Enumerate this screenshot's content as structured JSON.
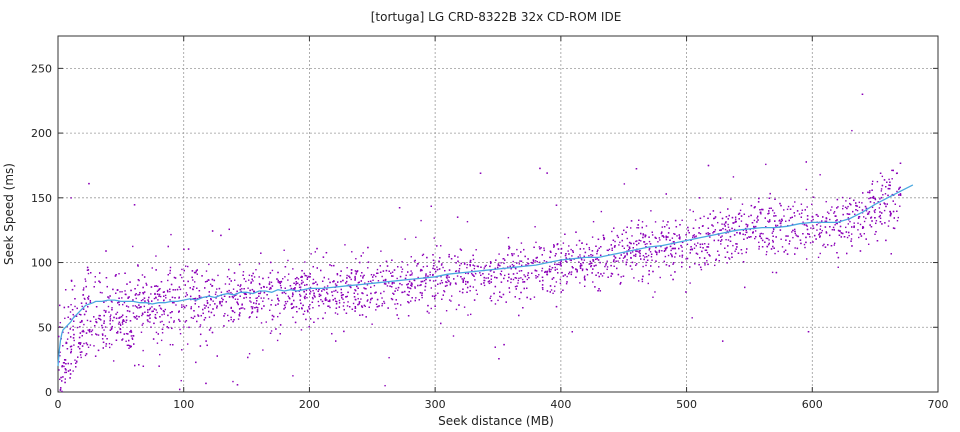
{
  "chart_data": {
    "type": "scatter",
    "title": "[tortuga] LG CRD-8322B 32x CD-ROM IDE",
    "xlabel": "Seek distance (MB)",
    "ylabel": "Seek Speed (ms)",
    "xlim": [
      0,
      700
    ],
    "ylim": [
      0,
      275
    ],
    "xticks": [
      0,
      100,
      200,
      300,
      400,
      500,
      600,
      700
    ],
    "yticks": [
      0,
      50,
      100,
      150,
      200,
      250
    ],
    "grid": true,
    "colors": {
      "points": "#8b00b8",
      "trend": "#4aa8e0",
      "grid": "#9a9a9a"
    },
    "series": [
      {
        "kind": "scatter",
        "note_points": "dense scatter cloud of individual seek measurements",
        "x": [
          0,
          1,
          2,
          3,
          4,
          5,
          6,
          7,
          8,
          10,
          12,
          14,
          16,
          18,
          20,
          22,
          25,
          28,
          30,
          33,
          36,
          40,
          44,
          48,
          52,
          56,
          60,
          65,
          70,
          75,
          80,
          85,
          90,
          95,
          100,
          110,
          120,
          130,
          140,
          150,
          160,
          170,
          180,
          190,
          200,
          210,
          220,
          230,
          240,
          250,
          260,
          270,
          280,
          290,
          300,
          310,
          320,
          330,
          340,
          350,
          360,
          370,
          380,
          390,
          400,
          410,
          420,
          430,
          440,
          450,
          460,
          470,
          480,
          490,
          500,
          510,
          520,
          530,
          540,
          550,
          560,
          570,
          580,
          590,
          600,
          610,
          620,
          630,
          640,
          650,
          660,
          670,
          680
        ],
        "y": [
          15,
          22,
          28,
          32,
          35,
          38,
          40,
          42,
          44,
          48,
          52,
          55,
          58,
          60,
          62,
          64,
          66,
          67,
          68,
          68,
          69,
          69,
          70,
          70,
          69,
          68,
          68,
          68,
          67,
          67,
          68,
          68,
          69,
          69,
          70,
          71,
          72,
          73,
          74,
          75,
          76,
          76,
          77,
          77,
          78,
          79,
          80,
          81,
          82,
          83,
          84,
          85,
          86,
          87,
          88,
          89,
          90,
          91,
          92,
          93,
          94,
          95,
          96,
          98,
          100,
          102,
          104,
          105,
          106,
          107,
          109,
          111,
          113,
          114,
          116,
          118,
          120,
          122,
          124,
          125,
          126,
          126,
          127,
          128,
          129,
          130,
          130,
          132,
          136,
          142,
          148,
          154,
          158
        ]
      },
      {
        "kind": "line",
        "x": [
          0,
          1,
          2,
          3,
          4,
          6,
          8,
          10,
          12,
          15,
          18,
          20,
          22,
          25,
          28,
          30,
          35,
          40,
          45,
          50,
          55,
          60,
          65,
          70,
          75,
          80,
          85,
          90,
          95,
          100,
          105,
          110,
          115,
          120,
          125,
          130,
          135,
          140,
          145,
          150,
          155,
          160,
          165,
          170,
          175,
          180,
          185,
          190,
          195,
          200,
          210,
          220,
          230,
          240,
          250,
          260,
          270,
          280,
          290,
          300,
          310,
          320,
          330,
          340,
          350,
          360,
          370,
          380,
          390,
          400,
          410,
          420,
          430,
          440,
          450,
          460,
          470,
          480,
          490,
          500,
          510,
          520,
          530,
          540,
          550,
          560,
          570,
          580,
          590,
          600,
          610,
          620,
          630,
          640,
          650,
          660,
          670,
          680
        ],
        "y": [
          20,
          32,
          40,
          45,
          48,
          50,
          52,
          54,
          57,
          60,
          63,
          65,
          67,
          68,
          69,
          70,
          70,
          71,
          71,
          70,
          70,
          70,
          69,
          69,
          68,
          69,
          69,
          70,
          70,
          71,
          72,
          71,
          73,
          74,
          73,
          75,
          76,
          75,
          77,
          77,
          76,
          78,
          78,
          77,
          79,
          78,
          79,
          78,
          79,
          80,
          80,
          81,
          82,
          83,
          84,
          85,
          86,
          87,
          88,
          89,
          91,
          92,
          93,
          94,
          95,
          96,
          97,
          98,
          100,
          102,
          103,
          104,
          104,
          106,
          108,
          110,
          112,
          113,
          115,
          117,
          119,
          121,
          123,
          125,
          126,
          127,
          127,
          128,
          130,
          131,
          131,
          131,
          134,
          139,
          145,
          150,
          155,
          160
        ]
      }
    ]
  }
}
